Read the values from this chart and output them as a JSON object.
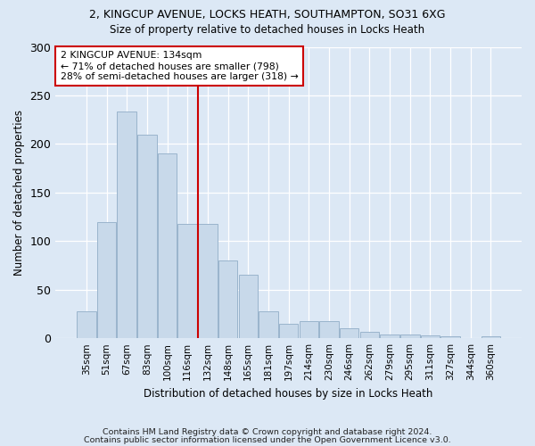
{
  "title1": "2, KINGCUP AVENUE, LOCKS HEATH, SOUTHAMPTON, SO31 6XG",
  "title2": "Size of property relative to detached houses in Locks Heath",
  "xlabel": "Distribution of detached houses by size in Locks Heath",
  "ylabel": "Number of detached properties",
  "bar_labels": [
    "35sqm",
    "51sqm",
    "67sqm",
    "83sqm",
    "100sqm",
    "116sqm",
    "132sqm",
    "148sqm",
    "165sqm",
    "181sqm",
    "197sqm",
    "214sqm",
    "230sqm",
    "246sqm",
    "262sqm",
    "279sqm",
    "295sqm",
    "311sqm",
    "327sqm",
    "344sqm",
    "360sqm"
  ],
  "bar_values": [
    28,
    120,
    233,
    210,
    190,
    118,
    118,
    80,
    65,
    28,
    15,
    18,
    18,
    10,
    7,
    4,
    4,
    3,
    2,
    0,
    2
  ],
  "bar_color": "#c8d9ea",
  "bar_edge_color": "#9ab4cc",
  "reference_line_index": 6,
  "reference_line_color": "#cc0000",
  "annotation_line1": "2 KINGCUP AVENUE: 134sqm",
  "annotation_line2": "← 71% of detached houses are smaller (798)",
  "annotation_line3": "28% of semi-detached houses are larger (318) →",
  "annotation_box_color": "#cc0000",
  "annotation_fill": "#ffffff",
  "ylim": [
    0,
    300
  ],
  "yticks": [
    0,
    50,
    100,
    150,
    200,
    250,
    300
  ],
  "bg_color": "#dce8f5",
  "plot_bg_color": "#dce8f5",
  "footer1": "Contains HM Land Registry data © Crown copyright and database right 2024.",
  "footer2": "Contains public sector information licensed under the Open Government Licence v3.0."
}
